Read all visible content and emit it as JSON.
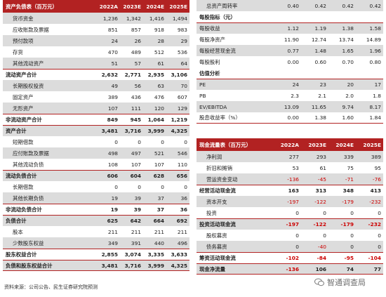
{
  "balance": {
    "title": "资产负债表（百万元）",
    "years": [
      "2022A",
      "2023E",
      "2024E",
      "2025E"
    ],
    "rows": [
      {
        "label": "货币资金",
        "v": [
          "1,236",
          "1,342",
          "1,416",
          "1,494"
        ],
        "style": "ind"
      },
      {
        "label": "应收账款及票据",
        "v": [
          "851",
          "857",
          "918",
          "983"
        ],
        "style": "ind"
      },
      {
        "label": "预付款项",
        "v": [
          "24",
          "26",
          "28",
          "29"
        ],
        "style": "ind"
      },
      {
        "label": "存货",
        "v": [
          "470",
          "489",
          "512",
          "536"
        ],
        "style": "ind"
      },
      {
        "label": "其他流动资产",
        "v": [
          "51",
          "57",
          "61",
          "64"
        ],
        "style": "ind"
      },
      {
        "label": "流动资产合计",
        "v": [
          "2,632",
          "2,771",
          "2,935",
          "3,106"
        ],
        "style": "bold"
      },
      {
        "label": "长期股权投资",
        "v": [
          "49",
          "56",
          "63",
          "70"
        ],
        "style": "ind"
      },
      {
        "label": "固定资产",
        "v": [
          "389",
          "436",
          "476",
          "607"
        ],
        "style": "ind"
      },
      {
        "label": "无形资产",
        "v": [
          "107",
          "111",
          "120",
          "129"
        ],
        "style": "ind"
      },
      {
        "label": "非流动资产合计",
        "v": [
          "849",
          "945",
          "1,064",
          "1,219"
        ],
        "style": "bold"
      },
      {
        "label": "资产合计",
        "v": [
          "3,481",
          "3,716",
          "3,999",
          "4,325"
        ],
        "style": "bold"
      },
      {
        "label": "短期借款",
        "v": [
          "0",
          "0",
          "0",
          "0"
        ],
        "style": "ind"
      },
      {
        "label": "应付账款及票据",
        "v": [
          "498",
          "497",
          "521",
          "546"
        ],
        "style": "ind"
      },
      {
        "label": "其他流动负债",
        "v": [
          "108",
          "107",
          "107",
          "110"
        ],
        "style": "ind"
      },
      {
        "label": "流动负债合计",
        "v": [
          "606",
          "604",
          "628",
          "656"
        ],
        "style": "bold"
      },
      {
        "label": "长期借款",
        "v": [
          "0",
          "0",
          "0",
          "0"
        ],
        "style": "ind"
      },
      {
        "label": "其他长期负债",
        "v": [
          "19",
          "39",
          "37",
          "36"
        ],
        "style": "ind"
      },
      {
        "label": "非流动负债合计",
        "v": [
          "19",
          "39",
          "37",
          "36"
        ],
        "style": "bold"
      },
      {
        "label": "负债合计",
        "v": [
          "625",
          "642",
          "664",
          "692"
        ],
        "style": "bold"
      },
      {
        "label": "股本",
        "v": [
          "211",
          "211",
          "211",
          "211"
        ],
        "style": "ind"
      },
      {
        "label": "少数股东权益",
        "v": [
          "349",
          "391",
          "440",
          "496"
        ],
        "style": "ind"
      },
      {
        "label": "股东权益合计",
        "v": [
          "2,855",
          "3,074",
          "3,335",
          "3,633"
        ],
        "style": "bold"
      },
      {
        "label": "负债和股东权益合计",
        "v": [
          "3,481",
          "3,716",
          "3,999",
          "4,325"
        ],
        "style": "bold"
      }
    ]
  },
  "ratios": {
    "top_row": {
      "label": "总资产周转率",
      "v": [
        "0.40",
        "0.42",
        "0.42",
        "0.42"
      ]
    },
    "per_share_title": "每股指标（元）",
    "per_share": [
      {
        "label": "每股收益",
        "v": [
          "1.12",
          "1.19",
          "1.38",
          "1.58"
        ]
      },
      {
        "label": "每股净资产",
        "v": [
          "11.90",
          "12.74",
          "13.74",
          "14.89"
        ]
      },
      {
        "label": "每股经营现金流",
        "v": [
          "0.77",
          "1.48",
          "1.65",
          "1.96"
        ]
      },
      {
        "label": "每股股利",
        "v": [
          "0.00",
          "0.60",
          "0.70",
          "0.80"
        ]
      }
    ],
    "valuation_title": "估值分析",
    "valuation": [
      {
        "label": "PE",
        "v": [
          "24",
          "23",
          "20",
          "17"
        ]
      },
      {
        "label": "PB",
        "v": [
          "2.3",
          "2.1",
          "2.0",
          "1.8"
        ]
      },
      {
        "label": "EV/EBITDA",
        "v": [
          "13.09",
          "11.65",
          "9.74",
          "8.17"
        ]
      },
      {
        "label": "股息收益率（%）",
        "v": [
          "0.00",
          "1.38",
          "1.60",
          "1.84"
        ]
      }
    ]
  },
  "cashflow": {
    "title": "现金流量表（百万元）",
    "years": [
      "2022A",
      "2023E",
      "2024E",
      "2025E"
    ],
    "rows": [
      {
        "label": "净利润",
        "v": [
          "277",
          "293",
          "339",
          "389"
        ],
        "style": "ind"
      },
      {
        "label": "折旧和摊销",
        "v": [
          "53",
          "61",
          "75",
          "95"
        ],
        "style": "ind"
      },
      {
        "label": "营运资金变动",
        "v": [
          "-136",
          "-45",
          "-71",
          "-76"
        ],
        "style": "ind"
      },
      {
        "label": "经营活动现金流",
        "v": [
          "163",
          "313",
          "348",
          "413"
        ],
        "style": "bold"
      },
      {
        "label": "资本开支",
        "v": [
          "-197",
          "-122",
          "-179",
          "-232"
        ],
        "style": "ind"
      },
      {
        "label": "投资",
        "v": [
          "0",
          "0",
          "0",
          "0"
        ],
        "style": "ind"
      },
      {
        "label": "投资活动现金流",
        "v": [
          "-197",
          "-122",
          "-179",
          "-232"
        ],
        "style": "bold"
      },
      {
        "label": "股权募资",
        "v": [
          "0",
          "0",
          "0",
          "0"
        ],
        "style": "ind"
      },
      {
        "label": "债务募资",
        "v": [
          "0",
          "-40",
          "0",
          "0"
        ],
        "style": "ind"
      },
      {
        "label": "筹资活动现金流",
        "v": [
          "-102",
          "-84",
          "-95",
          "-104"
        ],
        "style": "bold"
      },
      {
        "label": "现金净流量",
        "v": [
          "-136",
          "106",
          "74",
          "77"
        ],
        "style": "bold"
      }
    ]
  },
  "source": "资料来源：公司公告、民生证券研究院预测",
  "watermark": "智通调查局",
  "colors": {
    "header_red": "#b22222",
    "negative_red": "#cc0000",
    "band_gray": "#dcdcdc"
  },
  "icons": [
    "wechat-icon"
  ]
}
